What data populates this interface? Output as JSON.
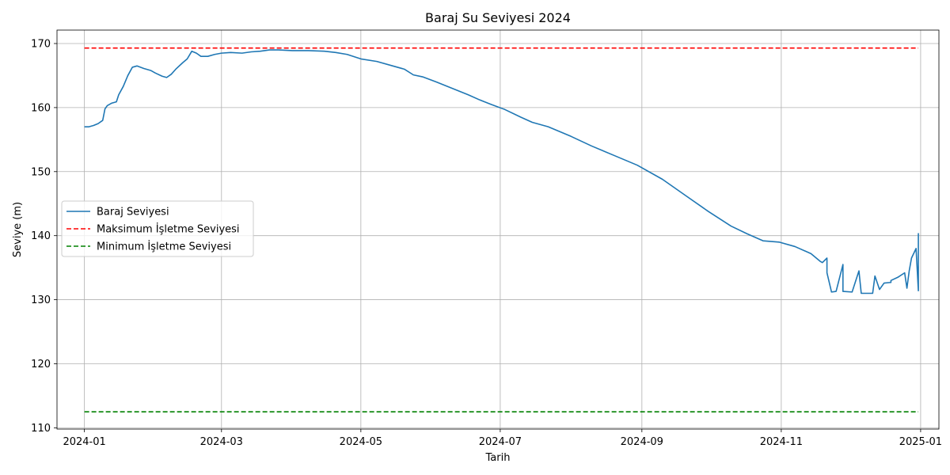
{
  "chart_data": {
    "type": "line",
    "title": "Baraj Su Seviyesi 2024",
    "xlabel": "Tarih",
    "ylabel": "Seviye (m)",
    "xlim": [
      "2023-12-20",
      "2025-01-09"
    ],
    "ylim": [
      109.8,
      172.1
    ],
    "x_ticks": [
      "2024-01",
      "2024-03",
      "2024-05",
      "2024-07",
      "2024-09",
      "2024-11",
      "2025-01"
    ],
    "y_ticks": [
      110,
      120,
      130,
      140,
      150,
      160,
      170
    ],
    "grid": true,
    "legend_position": "center-left",
    "series": [
      {
        "name": "Baraj Seviyesi",
        "color": "#1f77b4",
        "style": "solid",
        "points": [
          [
            "2024-01-01",
            157.0
          ],
          [
            "2024-01-03",
            157.0
          ],
          [
            "2024-01-05",
            157.2
          ],
          [
            "2024-01-07",
            157.5
          ],
          [
            "2024-01-09",
            158.0
          ],
          [
            "2024-01-10",
            159.8
          ],
          [
            "2024-01-11",
            160.3
          ],
          [
            "2024-01-13",
            160.7
          ],
          [
            "2024-01-15",
            160.9
          ],
          [
            "2024-01-16",
            162.0
          ],
          [
            "2024-01-18",
            163.3
          ],
          [
            "2024-01-20",
            165.0
          ],
          [
            "2024-01-22",
            166.3
          ],
          [
            "2024-01-24",
            166.5
          ],
          [
            "2024-01-27",
            166.1
          ],
          [
            "2024-01-30",
            165.8
          ],
          [
            "2024-02-01",
            165.4
          ],
          [
            "2024-02-04",
            164.9
          ],
          [
            "2024-02-06",
            164.7
          ],
          [
            "2024-02-08",
            165.2
          ],
          [
            "2024-02-10",
            166.0
          ],
          [
            "2024-02-13",
            167.0
          ],
          [
            "2024-02-15",
            167.6
          ],
          [
            "2024-02-17",
            168.8
          ],
          [
            "2024-02-19",
            168.5
          ],
          [
            "2024-02-21",
            168.0
          ],
          [
            "2024-02-24",
            168.0
          ],
          [
            "2024-02-27",
            168.3
          ],
          [
            "2024-03-01",
            168.5
          ],
          [
            "2024-03-05",
            168.6
          ],
          [
            "2024-03-10",
            168.5
          ],
          [
            "2024-03-14",
            168.7
          ],
          [
            "2024-03-18",
            168.8
          ],
          [
            "2024-03-22",
            169.0
          ],
          [
            "2024-03-26",
            169.0
          ],
          [
            "2024-04-01",
            168.9
          ],
          [
            "2024-04-08",
            168.9
          ],
          [
            "2024-04-15",
            168.8
          ],
          [
            "2024-04-20",
            168.6
          ],
          [
            "2024-04-25",
            168.3
          ],
          [
            "2024-05-01",
            167.6
          ],
          [
            "2024-05-08",
            167.2
          ],
          [
            "2024-05-15",
            166.5
          ],
          [
            "2024-05-20",
            166.0
          ],
          [
            "2024-05-24",
            165.1
          ],
          [
            "2024-05-28",
            164.8
          ],
          [
            "2024-06-03",
            164.0
          ],
          [
            "2024-06-10",
            163.0
          ],
          [
            "2024-06-17",
            162.0
          ],
          [
            "2024-06-22",
            161.2
          ],
          [
            "2024-06-27",
            160.5
          ],
          [
            "2024-07-03",
            159.7
          ],
          [
            "2024-07-10",
            158.5
          ],
          [
            "2024-07-15",
            157.7
          ],
          [
            "2024-07-22",
            157.0
          ],
          [
            "2024-08-01",
            155.5
          ],
          [
            "2024-08-10",
            154.0
          ],
          [
            "2024-08-20",
            152.5
          ],
          [
            "2024-08-30",
            151.0
          ],
          [
            "2024-09-10",
            148.8
          ],
          [
            "2024-09-20",
            146.3
          ],
          [
            "2024-09-30",
            143.8
          ],
          [
            "2024-10-10",
            141.5
          ],
          [
            "2024-10-17",
            140.3
          ],
          [
            "2024-10-24",
            139.2
          ],
          [
            "2024-10-31",
            139.0
          ],
          [
            "2024-11-07",
            138.3
          ],
          [
            "2024-11-14",
            137.2
          ],
          [
            "2024-11-21",
            136.5
          ],
          [
            "2024-11-28",
            135.5
          ],
          [
            "2024-12-05",
            134.5
          ],
          [
            "2024-12-12",
            133.7
          ],
          [
            "2024-12-19",
            132.7
          ],
          [
            "2024-12-26",
            131.8
          ],
          [
            "2024-12-31",
            131.4
          ],
          [
            "2024-11-18",
            136.0
          ],
          [
            "2024-11-19",
            135.8
          ],
          [
            "2024-11-21",
            134.2
          ],
          [
            "2024-11-23",
            131.2
          ],
          [
            "2024-11-25",
            131.3
          ],
          [
            "2024-11-28",
            131.3
          ],
          [
            "2024-12-02",
            131.2
          ],
          [
            "2024-12-06",
            131.0
          ],
          [
            "2024-12-09",
            131.0
          ],
          [
            "2024-12-11",
            131.0
          ],
          [
            "2024-12-14",
            131.6
          ],
          [
            "2024-12-16",
            132.6
          ],
          [
            "2024-12-19",
            133.0
          ],
          [
            "2024-12-22",
            133.5
          ],
          [
            "2024-12-25",
            134.2
          ],
          [
            "2024-12-27",
            134.5
          ],
          [
            "2024-12-28",
            136.5
          ],
          [
            "2024-12-30",
            138.0
          ],
          [
            "2024-12-31",
            140.4
          ]
        ]
      },
      {
        "name": "Maksimum İşletme Seviyesi",
        "color": "#ff0000",
        "style": "dashed",
        "points": [
          [
            "2024-01-01",
            169.3
          ],
          [
            "2024-12-31",
            169.3
          ]
        ]
      },
      {
        "name": "Minimum İşletme Seviyesi",
        "color": "#008000",
        "style": "dashed",
        "points": [
          [
            "2024-01-01",
            112.5
          ],
          [
            "2024-12-31",
            112.5
          ]
        ]
      }
    ]
  }
}
